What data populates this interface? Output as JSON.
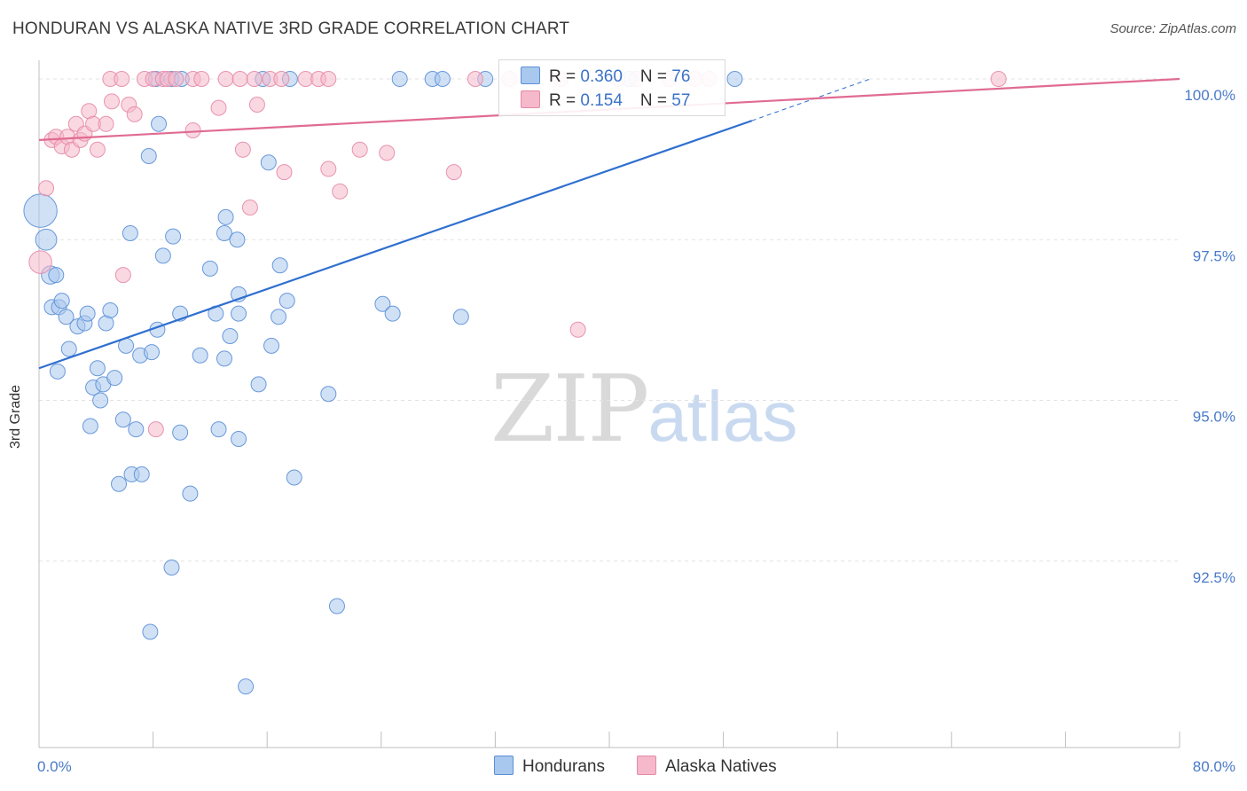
{
  "title": "HONDURAN VS ALASKA NATIVE 3RD GRADE CORRELATION CHART",
  "source": "Source: ZipAtlas.com",
  "watermark": {
    "zip": "ZIP",
    "atlas": "atlas"
  },
  "legend": {
    "rows": [
      {
        "r_label": "R = ",
        "r_value": "0.360",
        "n_label": "N = ",
        "n_value": "76"
      },
      {
        "r_label": "R = ",
        "r_value": "0.154",
        "n_label": "N = ",
        "n_value": "57"
      }
    ]
  },
  "bottom_legend": [
    "Hondurans",
    "Alaska Natives"
  ],
  "colors": {
    "blue_fill": "#a9c8ee",
    "blue_stroke": "#5b8fd6",
    "blue_line": "#2f6fcf",
    "pink_fill": "#f6b8cb",
    "pink_stroke": "#e58aa7",
    "pink_line": "#e06b93",
    "grid": "#e3e3e3",
    "tick_text": "#4a7bc8"
  },
  "chart_data": {
    "type": "scatter",
    "title": "HONDURAN VS ALASKA NATIVE 3RD GRADE CORRELATION CHART",
    "xlabel": "",
    "ylabel": "3rd Grade",
    "xlim": [
      0,
      80
    ],
    "ylim": [
      89.6,
      100.4
    ],
    "x_tick_labels": [
      {
        "value": 0,
        "label": "0.0%"
      },
      {
        "value": 80,
        "label": "80.0%"
      }
    ],
    "x_minor_ticks": [
      8,
      16,
      24,
      32,
      40,
      48,
      56,
      64,
      72,
      80
    ],
    "y_tick_labels": [
      {
        "value": 100.0,
        "label": "100.0%"
      },
      {
        "value": 97.5,
        "label": "97.5%"
      },
      {
        "value": 95.0,
        "label": "95.0%"
      },
      {
        "value": 92.5,
        "label": "92.5%"
      }
    ],
    "series": [
      {
        "name": "Hondurans",
        "color": "#5b8fd6",
        "R": 0.36,
        "N": 76,
        "trend": {
          "x0": 0,
          "y0": 95.5,
          "x1": 50,
          "y1": 99.35,
          "dashed_to_x": 58.3,
          "dashed_to_y": 100.0
        },
        "points": [
          [
            0.1,
            97.95,
            2.2
          ],
          [
            0.5,
            97.5,
            1.4
          ],
          [
            0.8,
            96.95,
            1.2
          ],
          [
            1.2,
            96.95,
            1.0
          ],
          [
            0.9,
            96.45,
            1.0
          ],
          [
            1.4,
            96.45,
            1.0
          ],
          [
            1.6,
            96.55,
            1.0
          ],
          [
            1.9,
            96.3,
            1.0
          ],
          [
            2.1,
            95.8,
            1.0
          ],
          [
            2.7,
            96.15,
            1.0
          ],
          [
            3.2,
            96.2,
            1.0
          ],
          [
            3.4,
            96.35,
            1.0
          ],
          [
            1.3,
            95.45,
            1.0
          ],
          [
            4.1,
            95.5,
            1.0
          ],
          [
            3.8,
            95.2,
            1.0
          ],
          [
            4.5,
            95.25,
            1.0
          ],
          [
            5.3,
            95.35,
            1.0
          ],
          [
            4.3,
            95.0,
            1.0
          ],
          [
            4.7,
            96.2,
            1.0
          ],
          [
            5.0,
            96.4,
            1.0
          ],
          [
            6.1,
            95.85,
            1.0
          ],
          [
            7.1,
            95.7,
            1.0
          ],
          [
            7.9,
            95.75,
            1.0
          ],
          [
            8.3,
            96.1,
            1.0
          ],
          [
            3.6,
            94.6,
            1.0
          ],
          [
            5.9,
            94.7,
            1.0
          ],
          [
            6.8,
            94.55,
            1.0
          ],
          [
            9.9,
            94.5,
            1.0
          ],
          [
            12.6,
            94.55,
            1.0
          ],
          [
            14.0,
            94.4,
            1.0
          ],
          [
            5.6,
            93.7,
            1.0
          ],
          [
            6.5,
            93.85,
            1.0
          ],
          [
            7.2,
            93.85,
            1.0
          ],
          [
            10.6,
            93.55,
            1.0
          ],
          [
            17.9,
            93.8,
            1.0
          ],
          [
            9.3,
            92.4,
            1.0
          ],
          [
            7.8,
            91.4,
            1.0
          ],
          [
            20.9,
            91.8,
            1.0
          ],
          [
            14.5,
            90.55,
            1.0
          ],
          [
            6.4,
            97.6,
            1.0
          ],
          [
            9.4,
            97.55,
            1.0
          ],
          [
            8.7,
            97.25,
            1.0
          ],
          [
            12.0,
            97.05,
            1.0
          ],
          [
            12.4,
            96.35,
            1.0
          ],
          [
            9.9,
            96.35,
            1.0
          ],
          [
            11.3,
            95.7,
            1.0
          ],
          [
            13.1,
            97.85,
            1.0
          ],
          [
            13.0,
            97.6,
            1.0
          ],
          [
            13.9,
            97.5,
            1.0
          ],
          [
            14.0,
            96.65,
            1.0
          ],
          [
            14.0,
            96.35,
            1.0
          ],
          [
            13.4,
            96.0,
            1.0
          ],
          [
            13.0,
            95.65,
            1.0
          ],
          [
            15.4,
            95.25,
            1.0
          ],
          [
            16.3,
            95.85,
            1.0
          ],
          [
            16.8,
            96.3,
            1.0
          ],
          [
            16.9,
            97.1,
            1.0
          ],
          [
            17.4,
            96.55,
            1.0
          ],
          [
            20.3,
            95.1,
            1.0
          ],
          [
            16.1,
            98.7,
            1.0
          ],
          [
            7.7,
            98.8,
            1.0
          ],
          [
            8.4,
            99.3,
            1.0
          ],
          [
            24.1,
            96.5,
            1.0
          ],
          [
            24.8,
            96.35,
            1.0
          ],
          [
            29.6,
            96.3,
            1.0
          ],
          [
            8.2,
            100.0,
            1.0
          ],
          [
            9.3,
            100.0,
            1.0
          ],
          [
            10.0,
            100.0,
            1.0
          ],
          [
            15.7,
            100.0,
            1.0
          ],
          [
            17.6,
            100.0,
            1.0
          ],
          [
            25.3,
            100.0,
            1.0
          ],
          [
            27.6,
            100.0,
            1.0
          ],
          [
            28.3,
            100.0,
            1.0
          ],
          [
            31.3,
            100.0,
            1.0
          ],
          [
            41.4,
            100.0,
            1.0
          ],
          [
            48.8,
            100.0,
            1.0
          ]
        ]
      },
      {
        "name": "Alaska Natives",
        "color": "#e58aa7",
        "R": 0.154,
        "N": 57,
        "trend": {
          "x0": 0,
          "y0": 99.05,
          "x1": 80,
          "y1": 100.0
        },
        "points": [
          [
            0.1,
            97.15,
            1.5
          ],
          [
            0.5,
            98.3,
            1.0
          ],
          [
            0.9,
            99.05,
            1.0
          ],
          [
            1.2,
            99.1,
            1.0
          ],
          [
            1.6,
            98.95,
            1.0
          ],
          [
            2.0,
            99.1,
            1.0
          ],
          [
            2.3,
            98.9,
            1.0
          ],
          [
            2.6,
            99.3,
            1.0
          ],
          [
            2.9,
            99.05,
            1.0
          ],
          [
            3.2,
            99.15,
            1.0
          ],
          [
            3.5,
            99.5,
            1.0
          ],
          [
            3.8,
            99.3,
            1.0
          ],
          [
            4.1,
            98.9,
            1.0
          ],
          [
            4.7,
            99.3,
            1.0
          ],
          [
            5.1,
            99.65,
            1.0
          ],
          [
            5.9,
            96.95,
            1.0
          ],
          [
            6.3,
            99.6,
            1.0
          ],
          [
            6.7,
            99.45,
            1.0
          ],
          [
            8.2,
            94.55,
            1.0
          ],
          [
            10.8,
            99.2,
            1.0
          ],
          [
            12.6,
            99.55,
            1.0
          ],
          [
            14.3,
            98.9,
            1.0
          ],
          [
            14.8,
            98.0,
            1.0
          ],
          [
            15.3,
            99.6,
            1.0
          ],
          [
            17.2,
            98.55,
            1.0
          ],
          [
            20.3,
            98.6,
            1.0
          ],
          [
            21.1,
            98.25,
            1.0
          ],
          [
            22.5,
            98.9,
            1.0
          ],
          [
            24.4,
            98.85,
            1.0
          ],
          [
            29.1,
            98.55,
            1.0
          ],
          [
            37.8,
            96.1,
            1.0
          ],
          [
            5.0,
            100.0,
            1.0
          ],
          [
            5.8,
            100.0,
            1.0
          ],
          [
            7.4,
            100.0,
            1.0
          ],
          [
            8.0,
            100.0,
            1.0
          ],
          [
            8.7,
            100.0,
            1.0
          ],
          [
            9.0,
            100.0,
            1.0
          ],
          [
            9.6,
            100.0,
            1.0
          ],
          [
            10.8,
            100.0,
            1.0
          ],
          [
            11.4,
            100.0,
            1.0
          ],
          [
            13.1,
            100.0,
            1.0
          ],
          [
            14.1,
            100.0,
            1.0
          ],
          [
            15.1,
            100.0,
            1.0
          ],
          [
            16.2,
            100.0,
            1.0
          ],
          [
            17.0,
            100.0,
            1.0
          ],
          [
            18.7,
            100.0,
            1.0
          ],
          [
            19.6,
            100.0,
            1.0
          ],
          [
            20.3,
            100.0,
            1.0
          ],
          [
            30.6,
            100.0,
            1.0
          ],
          [
            33.0,
            100.0,
            1.0
          ],
          [
            36.6,
            100.0,
            1.0
          ],
          [
            40.6,
            100.0,
            1.0
          ],
          [
            41.9,
            100.0,
            1.0
          ],
          [
            44.2,
            100.0,
            1.0
          ],
          [
            46.0,
            100.0,
            1.0
          ],
          [
            47.0,
            100.0,
            1.0
          ],
          [
            67.3,
            100.0,
            1.0
          ]
        ]
      }
    ]
  }
}
